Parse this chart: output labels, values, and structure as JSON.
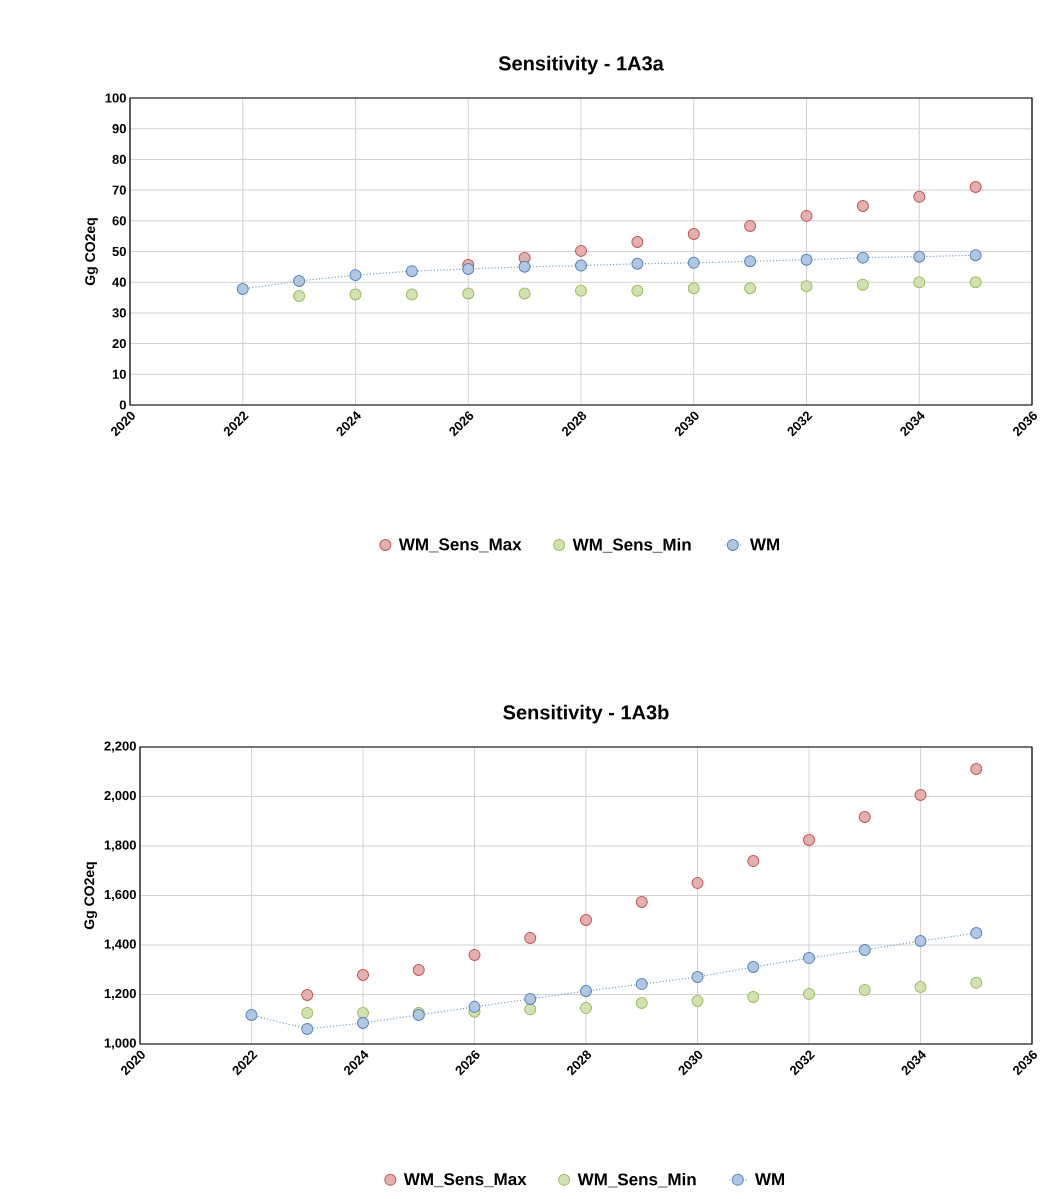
{
  "chart_data": [
    {
      "type": "scatter",
      "title": "Sensitivity  - 1A3a",
      "ylabel": "Gg CO2eq",
      "x": [
        2022,
        2023,
        2024,
        2025,
        2026,
        2027,
        2028,
        2029,
        2030,
        2031,
        2032,
        2033,
        2034,
        2035
      ],
      "xlim": [
        2020,
        2036
      ],
      "xticks": [
        2020,
        2022,
        2024,
        2026,
        2028,
        2030,
        2032,
        2034,
        2036
      ],
      "ylim": [
        0,
        100
      ],
      "yticks": [
        0,
        10,
        20,
        30,
        40,
        50,
        60,
        70,
        80,
        90,
        100
      ],
      "grid": true,
      "legend": "bottom",
      "marker": "circle",
      "series": [
        {
          "name": "WM_Sens_Max",
          "color": "#c0504d",
          "values": [
            null,
            null,
            null,
            null,
            45.6,
            47.9,
            50.2,
            53.1,
            55.7,
            58.3,
            61.6,
            64.8,
            67.8,
            71.0
          ]
        },
        {
          "name": "WM_Sens_Min",
          "color": "#9bbb59",
          "values": [
            null,
            35.5,
            36.0,
            36.0,
            36.3,
            36.3,
            37.2,
            37.2,
            38.0,
            38.0,
            38.7,
            39.2,
            40.0,
            40.0
          ]
        },
        {
          "name": "WM",
          "type": "line",
          "line_style": "dotted",
          "color": "#4f81bd",
          "values": [
            37.8,
            40.4,
            42.3,
            43.6,
            44.3,
            45.0,
            45.4,
            46.0,
            46.3,
            46.8,
            47.3,
            48.0,
            48.3,
            48.8
          ]
        }
      ]
    },
    {
      "type": "scatter",
      "title": "Sensitivity  - 1A3b",
      "ylabel": "Gg CO2eq",
      "x": [
        2022,
        2023,
        2024,
        2025,
        2026,
        2027,
        2028,
        2029,
        2030,
        2031,
        2032,
        2033,
        2034,
        2035
      ],
      "xlim": [
        2020,
        2036
      ],
      "xticks": [
        2020,
        2022,
        2024,
        2026,
        2028,
        2030,
        2032,
        2034,
        2036
      ],
      "ylim": [
        1000,
        2200
      ],
      "yticks": [
        {
          "value": 1000,
          "label": "1,000"
        },
        {
          "value": 1200,
          "label": "1,200"
        },
        {
          "value": 1400,
          "label": "1,400"
        },
        {
          "value": 1600,
          "label": "1,600"
        },
        {
          "value": 1800,
          "label": "1,800"
        },
        {
          "value": 2000,
          "label": "2,000"
        },
        {
          "value": 2200,
          "label": "2,200"
        }
      ],
      "grid": true,
      "legend": "bottom",
      "marker": "circle",
      "series": [
        {
          "name": "WM_Sens_Max",
          "color": "#c0504d",
          "values": [
            null,
            1198,
            1279,
            1299,
            1360,
            1428,
            1501,
            1574,
            1650,
            1739,
            1824,
            1917,
            2006,
            2111
          ]
        },
        {
          "name": "WM_Sens_Min",
          "color": "#9bbb59",
          "values": [
            null,
            1125,
            1125,
            1125,
            1130,
            1140,
            1145,
            1166,
            1174,
            1190,
            1202,
            1218,
            1230,
            1247
          ]
        },
        {
          "name": "WM",
          "type": "line",
          "line_style": "dotted",
          "color": "#4f81bd",
          "values": [
            1117,
            1061,
            1085,
            1117,
            1150,
            1182,
            1214,
            1242,
            1271,
            1311,
            1347,
            1380,
            1416,
            1448
          ]
        }
      ]
    }
  ]
}
